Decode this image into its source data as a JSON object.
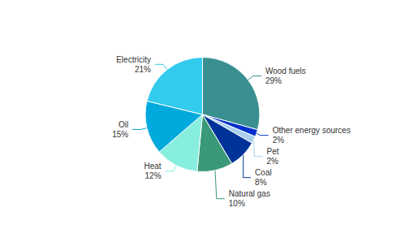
{
  "chart_data": {
    "type": "pie",
    "categories": [
      "Wood fuels",
      "Other energy sources",
      "Pet",
      "Coal",
      "Natural gas",
      "Heat",
      "Oil",
      "Electricity"
    ],
    "values": [
      29,
      2,
      2,
      8,
      10,
      12,
      15,
      21
    ],
    "value_labels": [
      "29%",
      "2%",
      "2%",
      "8%",
      "10%",
      "12%",
      "15%",
      "21%"
    ],
    "colors": [
      "#3a9090",
      "#0030cc",
      "#aacfee",
      "#003399",
      "#3a9978",
      "#88eedd",
      "#00aadd",
      "#33ccee"
    ],
    "data_labels": true,
    "legend": false
  }
}
